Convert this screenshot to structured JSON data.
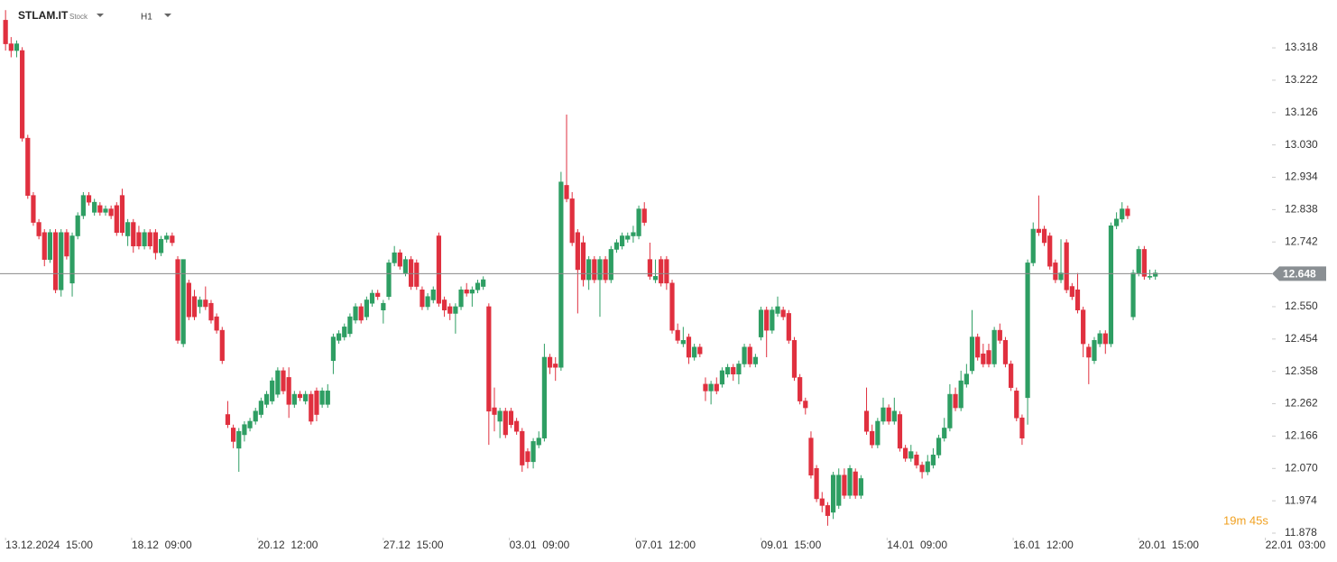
{
  "chart_data": {
    "type": "candlestick",
    "symbol": "STLAM.IT",
    "instrument_type": "Stock",
    "timeframe": "H1",
    "last_price": 12.648,
    "countdown": "19m 45s",
    "up_color": "#2e9e63",
    "down_color": "#e0303f",
    "ylim": [
      11.87,
      13.46
    ],
    "yticks": [
      11.878,
      11.974,
      {
        "value": 12.07,
        "label": "12.070"
      },
      12.166,
      12.262,
      12.358,
      12.454,
      {
        "value": 12.55,
        "label": "12.550"
      },
      12.742,
      12.838,
      12.934,
      {
        "value": 13.03,
        "label": "13.030"
      },
      13.126,
      13.222,
      13.318
    ],
    "xlim": [
      -1,
      228
    ],
    "xticks": [
      {
        "value": 0,
        "label": "13.12.2024  15:00"
      },
      {
        "value": 22.7,
        "label": "18.12  09:00"
      },
      {
        "value": 45.4,
        "label": "20.12  12:00"
      },
      {
        "value": 68,
        "label": "27.12  15:00"
      },
      {
        "value": 90.7,
        "label": "03.01  09:00"
      },
      {
        "value": 113.4,
        "label": "07.01  12:00"
      },
      {
        "value": 136,
        "label": "09.01  15:00"
      },
      {
        "value": 158.7,
        "label": "14.01  09:00"
      },
      {
        "value": 181.4,
        "label": "16.01  12:00"
      },
      {
        "value": 204,
        "label": "20.01  15:00"
      },
      {
        "value": 226.8,
        "label": "22.01  03:00"
      }
    ],
    "candles": [
      [
        13.4,
        13.43,
        13.31,
        13.33
      ],
      [
        13.33,
        13.35,
        13.29,
        13.31
      ],
      [
        13.31,
        13.34,
        13.29,
        13.33
      ],
      [
        13.31,
        13.32,
        13.04,
        13.05
      ],
      [
        13.05,
        13.06,
        12.87,
        12.88
      ],
      [
        12.88,
        12.89,
        12.79,
        12.8
      ],
      [
        12.8,
        12.81,
        12.75,
        12.76
      ],
      [
        12.77,
        12.78,
        12.67,
        12.69
      ],
      [
        12.69,
        12.78,
        12.68,
        12.77
      ],
      [
        12.77,
        12.78,
        12.59,
        12.6
      ],
      [
        12.6,
        12.78,
        12.58,
        12.77
      ],
      [
        12.77,
        12.78,
        12.69,
        12.7
      ],
      [
        12.62,
        12.77,
        12.58,
        12.76
      ],
      [
        12.76,
        12.83,
        12.75,
        12.82
      ],
      [
        12.82,
        12.89,
        12.81,
        12.88
      ],
      [
        12.88,
        12.89,
        12.85,
        12.86
      ],
      [
        12.83,
        12.87,
        12.82,
        12.86
      ],
      [
        12.85,
        12.86,
        12.82,
        12.83
      ],
      [
        12.83,
        12.85,
        12.82,
        12.84
      ],
      [
        12.84,
        12.85,
        12.81,
        12.82
      ],
      [
        12.85,
        12.86,
        12.76,
        12.77
      ],
      [
        12.88,
        12.9,
        12.76,
        12.77
      ],
      [
        12.76,
        12.81,
        12.73,
        12.8
      ],
      [
        12.8,
        12.81,
        12.71,
        12.73
      ],
      [
        12.77,
        12.79,
        12.72,
        12.73
      ],
      [
        12.73,
        12.78,
        12.72,
        12.77
      ],
      [
        12.77,
        12.78,
        12.72,
        12.73
      ],
      [
        12.77,
        12.78,
        12.69,
        12.71
      ],
      [
        12.71,
        12.76,
        12.7,
        12.75
      ],
      [
        12.75,
        12.77,
        12.74,
        12.76
      ],
      [
        12.76,
        12.77,
        12.73,
        12.74
      ],
      [
        12.69,
        12.7,
        12.44,
        12.45
      ],
      [
        12.44,
        12.69,
        12.43,
        12.69
      ],
      [
        12.62,
        12.63,
        12.51,
        12.52
      ],
      [
        12.58,
        12.6,
        12.51,
        12.52
      ],
      [
        12.55,
        12.58,
        12.53,
        12.57
      ],
      [
        12.57,
        12.61,
        12.54,
        12.55
      ],
      [
        12.56,
        12.57,
        12.5,
        12.51
      ],
      [
        12.52,
        12.53,
        12.47,
        12.48
      ],
      [
        12.48,
        12.49,
        12.38,
        12.39
      ],
      [
        12.23,
        12.27,
        12.19,
        12.2
      ],
      [
        12.19,
        12.2,
        12.13,
        12.15
      ],
      [
        12.13,
        12.19,
        12.06,
        12.18
      ],
      [
        12.17,
        12.21,
        12.15,
        12.2
      ],
      [
        12.19,
        12.22,
        12.18,
        12.21
      ],
      [
        12.21,
        12.25,
        12.2,
        12.24
      ],
      [
        12.23,
        12.28,
        12.22,
        12.27
      ],
      [
        12.26,
        12.3,
        12.25,
        12.29
      ],
      [
        12.27,
        12.34,
        12.26,
        12.33
      ],
      [
        12.29,
        12.37,
        12.28,
        12.36
      ],
      [
        12.36,
        12.37,
        12.29,
        12.3
      ],
      [
        12.34,
        12.37,
        12.22,
        12.26
      ],
      [
        12.26,
        12.3,
        12.25,
        12.29
      ],
      [
        12.29,
        12.3,
        12.27,
        12.28
      ],
      [
        12.27,
        12.3,
        12.26,
        12.29
      ],
      [
        12.29,
        12.3,
        12.2,
        12.21
      ],
      [
        12.3,
        12.31,
        12.21,
        12.23
      ],
      [
        12.26,
        12.31,
        12.25,
        12.3
      ],
      [
        12.26,
        12.32,
        12.25,
        12.3
      ],
      [
        12.39,
        12.47,
        12.35,
        12.46
      ],
      [
        12.45,
        12.48,
        12.44,
        12.47
      ],
      [
        12.46,
        12.5,
        12.45,
        12.49
      ],
      [
        12.47,
        12.53,
        12.46,
        12.52
      ],
      [
        12.51,
        12.56,
        12.5,
        12.55
      ],
      [
        12.55,
        12.56,
        12.5,
        12.51
      ],
      [
        12.52,
        12.58,
        12.51,
        12.57
      ],
      [
        12.56,
        12.6,
        12.55,
        12.59
      ],
      [
        12.59,
        12.6,
        12.57,
        12.58
      ],
      [
        12.54,
        12.57,
        12.5,
        12.56
      ],
      [
        12.58,
        12.69,
        12.57,
        12.68
      ],
      [
        12.68,
        12.73,
        12.67,
        12.71
      ],
      [
        12.71,
        12.72,
        12.66,
        12.67
      ],
      [
        12.65,
        12.7,
        12.64,
        12.69
      ],
      [
        12.69,
        12.7,
        12.6,
        12.61
      ],
      [
        12.68,
        12.69,
        12.6,
        12.61
      ],
      [
        12.6,
        12.61,
        12.54,
        12.55
      ],
      [
        12.55,
        12.59,
        12.54,
        12.58
      ],
      [
        12.57,
        12.61,
        12.56,
        12.6
      ],
      [
        12.76,
        12.77,
        12.55,
        12.56
      ],
      [
        12.57,
        12.58,
        12.52,
        12.54
      ],
      [
        12.55,
        12.56,
        12.51,
        12.53
      ],
      [
        12.53,
        12.56,
        12.47,
        12.55
      ],
      [
        12.55,
        12.61,
        12.54,
        12.6
      ],
      [
        12.6,
        12.62,
        12.58,
        12.59
      ],
      [
        12.59,
        12.61,
        12.55,
        12.6
      ],
      [
        12.6,
        12.63,
        12.59,
        12.62
      ],
      [
        12.61,
        12.64,
        12.6,
        12.63
      ],
      [
        12.55,
        12.56,
        12.14,
        12.24
      ],
      [
        12.25,
        12.31,
        12.18,
        12.23
      ],
      [
        12.21,
        12.25,
        12.16,
        12.24
      ],
      [
        12.24,
        12.25,
        12.16,
        12.17
      ],
      [
        12.24,
        12.25,
        12.19,
        12.2
      ],
      [
        12.21,
        12.22,
        12.17,
        12.18
      ],
      [
        12.18,
        12.19,
        12.06,
        12.08
      ],
      [
        12.12,
        12.13,
        12.07,
        12.09
      ],
      [
        12.09,
        12.16,
        12.07,
        12.15
      ],
      [
        12.14,
        12.18,
        12.13,
        12.16
      ],
      [
        12.16,
        12.44,
        12.15,
        12.4
      ],
      [
        12.4,
        12.41,
        12.35,
        12.37
      ],
      [
        12.38,
        12.4,
        12.33,
        12.37
      ],
      [
        12.37,
        12.95,
        12.36,
        12.92
      ],
      [
        12.91,
        13.12,
        12.86,
        12.87
      ],
      [
        12.87,
        12.89,
        12.73,
        12.74
      ],
      [
        12.77,
        12.78,
        12.53,
        12.66
      ],
      [
        12.74,
        12.76,
        12.61,
        12.63
      ],
      [
        12.63,
        12.7,
        12.6,
        12.69
      ],
      [
        12.69,
        12.7,
        12.62,
        12.63
      ],
      [
        12.63,
        12.7,
        12.52,
        12.69
      ],
      [
        12.69,
        12.7,
        12.62,
        12.63
      ],
      [
        12.63,
        12.73,
        12.62,
        12.72
      ],
      [
        12.72,
        12.75,
        12.71,
        12.74
      ],
      [
        12.73,
        12.77,
        12.72,
        12.76
      ],
      [
        12.75,
        12.77,
        12.74,
        12.76
      ],
      [
        12.76,
        12.79,
        12.74,
        12.77
      ],
      [
        12.76,
        12.85,
        12.75,
        12.84
      ],
      [
        12.84,
        12.86,
        12.79,
        12.8
      ],
      [
        12.69,
        12.74,
        12.63,
        12.64
      ],
      [
        12.63,
        12.69,
        12.62,
        12.64
      ],
      [
        12.69,
        12.7,
        12.61,
        12.62
      ],
      [
        12.69,
        12.7,
        12.6,
        12.62
      ],
      [
        12.62,
        12.63,
        12.47,
        12.48
      ],
      [
        12.48,
        12.5,
        12.44,
        12.45
      ],
      [
        12.44,
        12.49,
        12.43,
        12.45
      ],
      [
        12.46,
        12.47,
        12.38,
        12.4
      ],
      [
        12.4,
        12.44,
        12.39,
        12.43
      ],
      [
        12.43,
        12.44,
        12.4,
        12.41
      ],
      [
        12.32,
        12.34,
        12.27,
        12.3
      ],
      [
        12.3,
        12.33,
        12.26,
        12.32
      ],
      [
        12.32,
        12.34,
        12.29,
        12.3
      ],
      [
        12.32,
        12.37,
        12.31,
        12.36
      ],
      [
        12.35,
        12.38,
        12.34,
        12.37
      ],
      [
        12.37,
        12.38,
        12.33,
        12.35
      ],
      [
        12.35,
        12.39,
        12.32,
        12.38
      ],
      [
        12.38,
        12.44,
        12.37,
        12.43
      ],
      [
        12.43,
        12.44,
        12.37,
        12.38
      ],
      [
        12.38,
        12.41,
        12.37,
        12.4
      ],
      [
        12.46,
        12.55,
        12.45,
        12.54
      ],
      [
        12.54,
        12.55,
        12.4,
        12.48
      ],
      [
        12.48,
        12.55,
        12.47,
        12.54
      ],
      [
        12.53,
        12.58,
        12.52,
        12.55
      ],
      [
        12.54,
        12.55,
        12.51,
        12.52
      ],
      [
        12.53,
        12.54,
        12.44,
        12.45
      ],
      [
        12.45,
        12.46,
        12.33,
        12.34
      ],
      [
        12.34,
        12.35,
        12.26,
        12.27
      ],
      [
        12.27,
        12.28,
        12.23,
        12.25
      ],
      [
        12.16,
        12.18,
        12.04,
        12.05
      ],
      [
        12.07,
        12.08,
        11.97,
        11.98
      ],
      [
        11.98,
        12.0,
        11.94,
        11.96
      ],
      [
        11.96,
        11.97,
        11.9,
        11.93
      ],
      [
        11.94,
        12.06,
        11.92,
        12.05
      ],
      [
        11.96,
        12.07,
        11.95,
        12.05
      ],
      [
        12.05,
        12.07,
        11.98,
        11.99
      ],
      [
        11.99,
        12.08,
        11.98,
        12.07
      ],
      [
        12.06,
        12.07,
        11.98,
        11.99
      ],
      [
        11.99,
        12.05,
        11.98,
        12.04
      ],
      [
        12.24,
        12.31,
        12.17,
        12.18
      ],
      [
        12.18,
        12.2,
        12.13,
        12.14
      ],
      [
        12.14,
        12.22,
        12.13,
        12.21
      ],
      [
        12.21,
        12.28,
        12.2,
        12.25
      ],
      [
        12.25,
        12.26,
        12.2,
        12.21
      ],
      [
        12.21,
        12.28,
        12.2,
        12.24
      ],
      [
        12.23,
        12.24,
        12.12,
        12.13
      ],
      [
        12.13,
        12.14,
        12.09,
        12.1
      ],
      [
        12.1,
        12.14,
        12.09,
        12.12
      ],
      [
        12.11,
        12.12,
        12.07,
        12.08
      ],
      [
        12.08,
        12.09,
        12.04,
        12.06
      ],
      [
        12.06,
        12.11,
        12.05,
        12.09
      ],
      [
        12.08,
        12.13,
        12.07,
        12.11
      ],
      [
        12.11,
        12.17,
        12.1,
        12.16
      ],
      [
        12.16,
        12.22,
        12.15,
        12.19
      ],
      [
        12.19,
        12.32,
        12.18,
        12.29
      ],
      [
        12.29,
        12.31,
        12.24,
        12.25
      ],
      [
        12.25,
        12.36,
        12.24,
        12.33
      ],
      [
        12.32,
        12.38,
        12.31,
        12.35
      ],
      [
        12.36,
        12.54,
        12.35,
        12.46
      ],
      [
        12.46,
        12.47,
        12.39,
        12.4
      ],
      [
        12.41,
        12.44,
        12.37,
        12.38
      ],
      [
        12.42,
        12.44,
        12.37,
        12.38
      ],
      [
        12.38,
        12.49,
        12.37,
        12.48
      ],
      [
        12.48,
        12.5,
        12.44,
        12.45
      ],
      [
        12.45,
        12.46,
        12.37,
        12.38
      ],
      [
        12.38,
        12.39,
        12.3,
        12.31
      ],
      [
        12.3,
        12.31,
        12.21,
        12.22
      ],
      [
        12.22,
        12.23,
        12.14,
        12.16
      ],
      [
        12.28,
        12.69,
        12.2,
        12.68
      ],
      [
        12.68,
        12.8,
        12.67,
        12.78
      ],
      [
        12.78,
        12.88,
        12.76,
        12.77
      ],
      [
        12.78,
        12.79,
        12.73,
        12.74
      ],
      [
        12.76,
        12.77,
        12.66,
        12.67
      ],
      [
        12.68,
        12.69,
        12.62,
        12.63
      ],
      [
        12.63,
        12.75,
        12.62,
        12.65
      ],
      [
        12.74,
        12.75,
        12.59,
        12.6
      ],
      [
        12.61,
        12.62,
        12.57,
        12.58
      ],
      [
        12.6,
        12.65,
        12.53,
        12.54
      ],
      [
        12.54,
        12.55,
        12.4,
        12.44
      ],
      [
        12.43,
        12.44,
        12.32,
        12.4
      ],
      [
        12.39,
        12.46,
        12.38,
        12.45
      ],
      [
        12.44,
        12.48,
        12.43,
        12.47
      ],
      [
        12.47,
        12.48,
        12.41,
        12.44
      ],
      [
        12.44,
        12.8,
        12.43,
        12.79
      ],
      [
        12.79,
        12.83,
        12.78,
        12.81
      ],
      [
        12.81,
        12.86,
        12.8,
        12.84
      ],
      [
        12.84,
        12.85,
        12.81,
        12.82
      ],
      [
        12.52,
        12.66,
        12.51,
        12.65
      ],
      [
        12.65,
        12.73,
        12.64,
        12.72
      ],
      [
        12.72,
        12.73,
        12.63,
        12.64
      ],
      [
        12.64,
        12.66,
        12.63,
        12.64
      ],
      [
        12.64,
        12.66,
        12.63,
        12.65
      ]
    ]
  }
}
